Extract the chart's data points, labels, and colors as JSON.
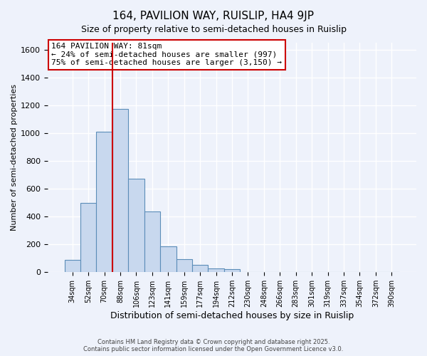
{
  "title": "164, PAVILION WAY, RUISLIP, HA4 9JP",
  "subtitle": "Size of property relative to semi-detached houses in Ruislip",
  "xlabel": "Distribution of semi-detached houses by size in Ruislip",
  "ylabel": "Number of semi-detached properties",
  "categories": [
    "34sqm",
    "52sqm",
    "70sqm",
    "88sqm",
    "106sqm",
    "123sqm",
    "141sqm",
    "159sqm",
    "177sqm",
    "194sqm",
    "212sqm",
    "230sqm",
    "248sqm",
    "266sqm",
    "283sqm",
    "301sqm",
    "319sqm",
    "337sqm",
    "354sqm",
    "372sqm",
    "390sqm"
  ],
  "bar_values": [
    90,
    500,
    1010,
    1175,
    670,
    435,
    185,
    95,
    55,
    25,
    20,
    0,
    0,
    0,
    0,
    0,
    0,
    0,
    0,
    0,
    0
  ],
  "bar_color": "#c8d8ee",
  "bar_edge_color": "#5b8db8",
  "vline_color": "#cc0000",
  "vline_pos": 2.5,
  "annotation_title": "164 PAVILION WAY: 81sqm",
  "annotation_line1": "← 24% of semi-detached houses are smaller (997)",
  "annotation_line2": "75% of semi-detached houses are larger (3,150) →",
  "annotation_box_color": "#ffffff",
  "annotation_box_edge": "#cc0000",
  "ylim": [
    0,
    1650
  ],
  "yticks": [
    0,
    200,
    400,
    600,
    800,
    1000,
    1200,
    1400,
    1600
  ],
  "background_color": "#eef2fb",
  "grid_color": "#ffffff",
  "footer_line1": "Contains HM Land Registry data © Crown copyright and database right 2025.",
  "footer_line2": "Contains public sector information licensed under the Open Government Licence v3.0."
}
